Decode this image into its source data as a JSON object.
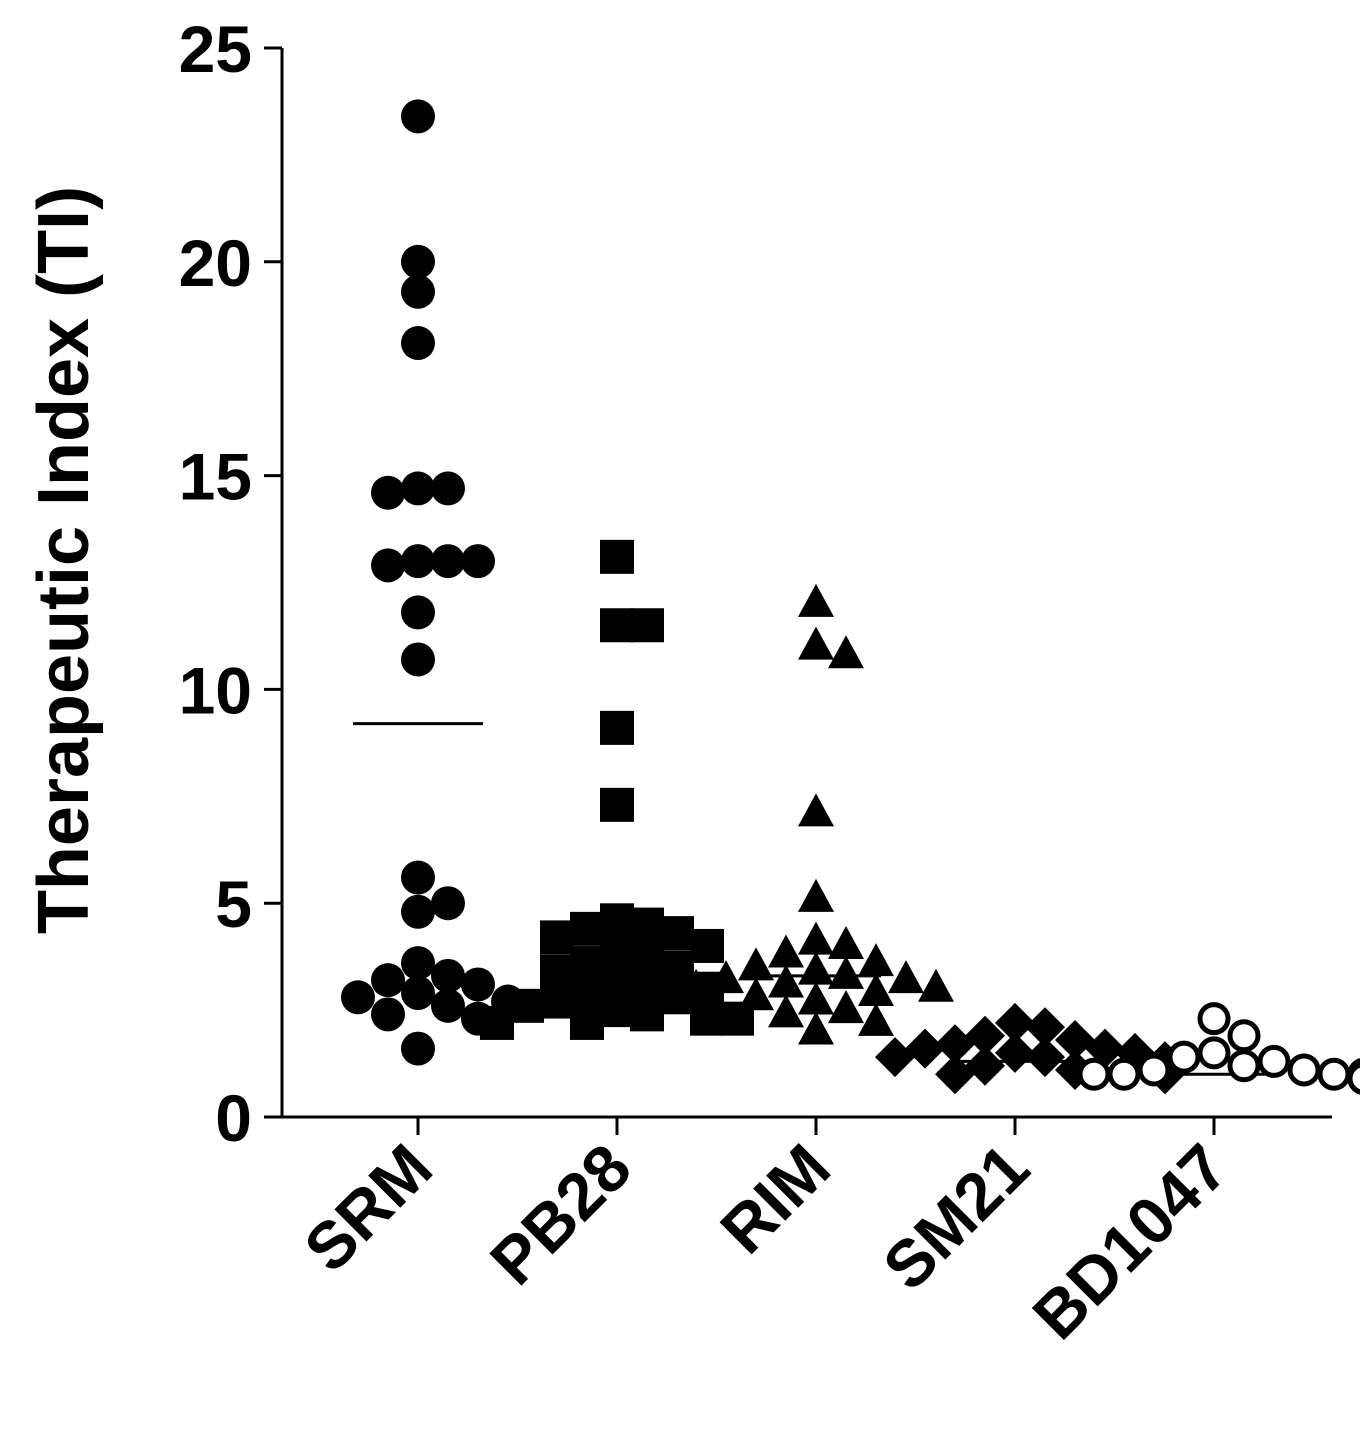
{
  "chart_data": {
    "type": "scatter",
    "title": "",
    "xlabel": "",
    "ylabel": "Therapeutic Index (TI)",
    "ylim": [
      0,
      25
    ],
    "yticks": [
      "0",
      "5",
      "10",
      "15",
      "20",
      "25"
    ],
    "categories": [
      "SRM",
      "PB28",
      "RIM",
      "SM21",
      "BD1047"
    ],
    "grid": false,
    "legend": "none",
    "series": [
      {
        "category": "SRM",
        "marker": "circle-filled",
        "mean": 9.2,
        "values": [
          23.4,
          20.0,
          19.3,
          18.1,
          14.7,
          14.7,
          14.6,
          13.0,
          13.0,
          12.9,
          13.0,
          11.8,
          10.7,
          5.6,
          5.0,
          4.8,
          3.6,
          3.3,
          3.2,
          3.1,
          2.9,
          2.8,
          2.7,
          2.6,
          2.4,
          2.3,
          1.6
        ]
      },
      {
        "category": "PB28",
        "marker": "square-filled",
        "mean": 3.6,
        "values": [
          13.1,
          11.5,
          11.5,
          9.1,
          7.3,
          4.6,
          4.5,
          4.4,
          4.3,
          4.2,
          4.0,
          3.9,
          3.8,
          3.6,
          3.5,
          3.4,
          3.2,
          3.1,
          3.0,
          2.9,
          2.8,
          2.7,
          2.6,
          2.5,
          2.4,
          2.3,
          2.3,
          2.2,
          2.2
        ]
      },
      {
        "category": "RIM",
        "marker": "triangle-filled",
        "mean": 3.3,
        "values": [
          12.0,
          11.0,
          10.8,
          7.1,
          5.1,
          4.1,
          4.0,
          3.8,
          3.6,
          3.5,
          3.4,
          3.3,
          3.2,
          3.2,
          3.1,
          3.0,
          3.0,
          2.9,
          2.8,
          2.7,
          2.5,
          2.4,
          2.2,
          2.0
        ]
      },
      {
        "category": "SM21",
        "marker": "diamond-filled",
        "mean": 1.3,
        "values": [
          2.2,
          2.1,
          1.9,
          1.8,
          1.7,
          1.6,
          1.6,
          1.5,
          1.5,
          1.4,
          1.4,
          1.3,
          1.3,
          1.3,
          1.2,
          1.2,
          1.2,
          1.1,
          1.1,
          1.0,
          1.0,
          1.0
        ]
      },
      {
        "category": "BD1047",
        "marker": "circle-open",
        "mean": 1.0,
        "values": [
          2.3,
          1.9,
          1.5,
          1.4,
          1.3,
          1.2,
          1.1,
          1.1,
          1.0,
          1.0,
          1.0,
          1.0,
          1.0,
          1.0,
          1.0,
          1.0,
          1.0,
          0.9,
          0.9,
          0.9,
          0.9,
          0.9
        ]
      }
    ]
  }
}
